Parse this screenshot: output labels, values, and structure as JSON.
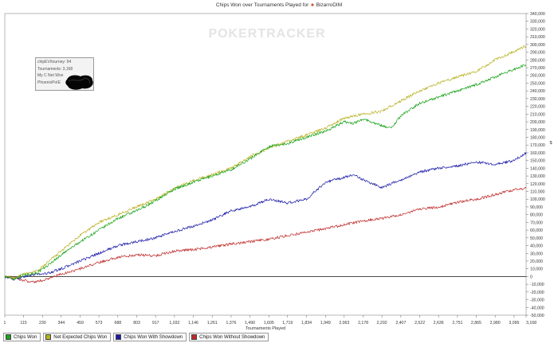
{
  "page": {
    "title_prefix": "Chips Won over Tournaments Played for",
    "player": "BizarroDIM",
    "watermark": "POKERTRACKER"
  },
  "tooltip": {
    "lines": [
      "chipEV/tourney: 94",
      "Tournaments: 3,168",
      "My C Net Won",
      "PhoenixPoIE"
    ]
  },
  "chart_data": {
    "type": "line",
    "xlabel": "Tournaments Played",
    "ylabel": "$",
    "x_ticks": [
      1,
      115,
      230,
      344,
      459,
      573,
      688,
      803,
      917,
      1032,
      1146,
      1261,
      1376,
      1490,
      1605,
      1719,
      1834,
      1949,
      2063,
      2178,
      2292,
      2407,
      2522,
      2636,
      2751,
      2865,
      2980,
      3095,
      3168
    ],
    "x_tick_labels": [
      "1",
      "115",
      "230",
      "344",
      "459",
      "573",
      "688",
      "803",
      "917",
      "1,032",
      "1,146",
      "1,261",
      "1,376",
      "1,490",
      "1,605",
      "1,719",
      "1,834",
      "1,949",
      "2,063",
      "2,178",
      "2,292",
      "2,407",
      "2,522",
      "2,636",
      "2,751",
      "2,865",
      "2,980",
      "3,095",
      "3,168"
    ],
    "xlim": [
      1,
      3168
    ],
    "ylim": [
      -50000,
      340000
    ],
    "y_tick_step": 10000,
    "grid": false,
    "legend_position": "bottom-left",
    "series": [
      {
        "name": "Chips Won",
        "color": "#19a319",
        "points": [
          [
            1,
            0
          ],
          [
            60,
            -3000
          ],
          [
            115,
            2000
          ],
          [
            200,
            5000
          ],
          [
            260,
            14000
          ],
          [
            344,
            28000
          ],
          [
            459,
            45000
          ],
          [
            573,
            60000
          ],
          [
            688,
            75000
          ],
          [
            803,
            85000
          ],
          [
            917,
            98000
          ],
          [
            1032,
            113000
          ],
          [
            1146,
            122000
          ],
          [
            1261,
            130000
          ],
          [
            1376,
            138000
          ],
          [
            1490,
            152000
          ],
          [
            1605,
            168000
          ],
          [
            1719,
            172000
          ],
          [
            1834,
            180000
          ],
          [
            1949,
            188000
          ],
          [
            2063,
            200000
          ],
          [
            2120,
            198000
          ],
          [
            2178,
            204000
          ],
          [
            2292,
            195000
          ],
          [
            2350,
            192000
          ],
          [
            2407,
            208000
          ],
          [
            2522,
            224000
          ],
          [
            2636,
            232000
          ],
          [
            2751,
            240000
          ],
          [
            2865,
            248000
          ],
          [
            2980,
            258000
          ],
          [
            3095,
            268000
          ],
          [
            3168,
            274000
          ]
        ]
      },
      {
        "name": "Net Expected Chips Won",
        "color": "#b8b020",
        "points": [
          [
            1,
            0
          ],
          [
            60,
            -2000
          ],
          [
            115,
            3000
          ],
          [
            200,
            7000
          ],
          [
            260,
            18000
          ],
          [
            344,
            33000
          ],
          [
            459,
            53000
          ],
          [
            573,
            70000
          ],
          [
            688,
            80000
          ],
          [
            803,
            90000
          ],
          [
            917,
            100000
          ],
          [
            1032,
            114000
          ],
          [
            1146,
            124000
          ],
          [
            1261,
            132000
          ],
          [
            1376,
            140000
          ],
          [
            1490,
            155000
          ],
          [
            1605,
            166000
          ],
          [
            1719,
            175000
          ],
          [
            1834,
            183000
          ],
          [
            1949,
            192000
          ],
          [
            2063,
            205000
          ],
          [
            2178,
            210000
          ],
          [
            2292,
            214000
          ],
          [
            2407,
            227000
          ],
          [
            2522,
            240000
          ],
          [
            2636,
            250000
          ],
          [
            2751,
            258000
          ],
          [
            2865,
            265000
          ],
          [
            2980,
            280000
          ],
          [
            3095,
            291000
          ],
          [
            3168,
            298000
          ]
        ]
      },
      {
        "name": "Chips Won With Showdown",
        "color": "#1a1aa8",
        "points": [
          [
            1,
            0
          ],
          [
            60,
            -4000
          ],
          [
            115,
            0
          ],
          [
            200,
            3000
          ],
          [
            260,
            4000
          ],
          [
            344,
            10000
          ],
          [
            459,
            20000
          ],
          [
            573,
            30000
          ],
          [
            688,
            40000
          ],
          [
            803,
            45000
          ],
          [
            917,
            50000
          ],
          [
            1032,
            58000
          ],
          [
            1146,
            65000
          ],
          [
            1261,
            73000
          ],
          [
            1376,
            85000
          ],
          [
            1490,
            90000
          ],
          [
            1605,
            100000
          ],
          [
            1719,
            95000
          ],
          [
            1834,
            100000
          ],
          [
            1949,
            122000
          ],
          [
            2063,
            128000
          ],
          [
            2120,
            132000
          ],
          [
            2178,
            125000
          ],
          [
            2292,
            115000
          ],
          [
            2407,
            125000
          ],
          [
            2522,
            135000
          ],
          [
            2636,
            140000
          ],
          [
            2751,
            143000
          ],
          [
            2865,
            148000
          ],
          [
            2980,
            145000
          ],
          [
            3095,
            150000
          ],
          [
            3168,
            160000
          ]
        ]
      },
      {
        "name": "Chips Won Without Showdown",
        "color": "#c02828",
        "points": [
          [
            1,
            0
          ],
          [
            60,
            -2000
          ],
          [
            115,
            -5000
          ],
          [
            180,
            -7000
          ],
          [
            230,
            -5000
          ],
          [
            344,
            3000
          ],
          [
            459,
            10000
          ],
          [
            573,
            18000
          ],
          [
            688,
            25000
          ],
          [
            803,
            28000
          ],
          [
            917,
            27000
          ],
          [
            1032,
            33000
          ],
          [
            1146,
            35000
          ],
          [
            1261,
            38000
          ],
          [
            1376,
            42000
          ],
          [
            1490,
            45000
          ],
          [
            1605,
            48000
          ],
          [
            1719,
            53000
          ],
          [
            1834,
            57000
          ],
          [
            1949,
            62000
          ],
          [
            2063,
            67000
          ],
          [
            2178,
            72000
          ],
          [
            2292,
            75000
          ],
          [
            2407,
            80000
          ],
          [
            2522,
            87000
          ],
          [
            2636,
            90000
          ],
          [
            2751,
            96000
          ],
          [
            2865,
            100000
          ],
          [
            2980,
            106000
          ],
          [
            3095,
            112000
          ],
          [
            3168,
            114000
          ]
        ]
      }
    ]
  }
}
